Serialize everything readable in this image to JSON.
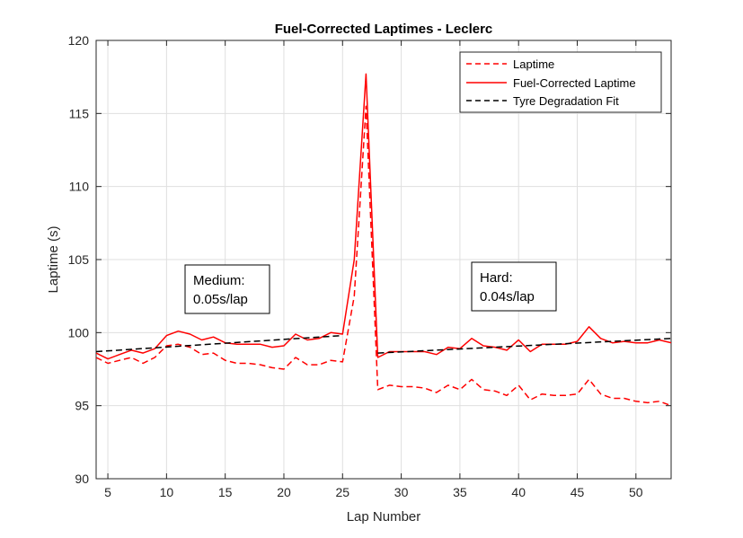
{
  "chart_data": {
    "type": "line",
    "title": "Fuel-Corrected Laptimes - Leclerc",
    "xlabel": "Lap Number",
    "ylabel": "Laptime (s)",
    "xlim": [
      4,
      53
    ],
    "ylim": [
      90,
      120
    ],
    "xticks": [
      5,
      10,
      15,
      20,
      25,
      30,
      35,
      40,
      45,
      50
    ],
    "yticks": [
      90,
      95,
      100,
      105,
      110,
      115,
      120
    ],
    "grid": true,
    "legend_position": "top-right",
    "series": [
      {
        "name": "Laptime",
        "style": "dashed",
        "color": "#ff0000",
        "x": [
          4,
          5,
          6,
          7,
          8,
          9,
          10,
          11,
          12,
          13,
          14,
          15,
          16,
          17,
          18,
          19,
          20,
          21,
          22,
          23,
          24,
          25,
          26,
          27,
          28,
          29,
          30,
          31,
          32,
          33,
          34,
          35,
          36,
          37,
          38,
          39,
          40,
          41,
          42,
          43,
          44,
          45,
          46,
          47,
          48,
          49,
          50,
          51,
          52,
          53
        ],
        "y": [
          98.3,
          97.9,
          98.1,
          98.3,
          97.9,
          98.3,
          99.1,
          99.2,
          99.0,
          98.5,
          98.6,
          98.1,
          97.9,
          97.9,
          97.8,
          97.6,
          97.5,
          98.3,
          97.8,
          97.8,
          98.1,
          98.0,
          102.5,
          115.5,
          96.1,
          96.4,
          96.3,
          96.3,
          96.2,
          95.9,
          96.4,
          96.1,
          96.8,
          96.1,
          96.0,
          95.7,
          96.4,
          95.4,
          95.8,
          95.7,
          95.7,
          95.8,
          96.8,
          95.8,
          95.5,
          95.5,
          95.3,
          95.2,
          95.3,
          95.0
        ]
      },
      {
        "name": "Fuel-Corrected Laptime",
        "style": "solid",
        "color": "#ff0000",
        "x": [
          4,
          5,
          6,
          7,
          8,
          9,
          10,
          11,
          12,
          13,
          14,
          15,
          16,
          17,
          18,
          19,
          20,
          21,
          22,
          23,
          24,
          25,
          26,
          27,
          28,
          29,
          30,
          31,
          32,
          33,
          34,
          35,
          36,
          37,
          38,
          39,
          40,
          41,
          42,
          43,
          44,
          45,
          46,
          47,
          48,
          49,
          50,
          51,
          52,
          53
        ],
        "y": [
          98.6,
          98.2,
          98.5,
          98.8,
          98.6,
          98.9,
          99.8,
          100.1,
          99.9,
          99.5,
          99.7,
          99.3,
          99.2,
          99.2,
          99.2,
          99.0,
          99.1,
          99.9,
          99.5,
          99.6,
          100.0,
          99.9,
          105.0,
          117.7,
          98.3,
          98.7,
          98.7,
          98.7,
          98.7,
          98.5,
          99.0,
          98.9,
          99.6,
          99.1,
          99.0,
          98.8,
          99.5,
          98.7,
          99.2,
          99.2,
          99.2,
          99.4,
          100.4,
          99.6,
          99.3,
          99.4,
          99.3,
          99.3,
          99.5,
          99.3
        ]
      },
      {
        "name": "Tyre Degradation Fit",
        "style": "dashed",
        "color": "#000000",
        "segments": [
          {
            "x": [
              4,
              25
            ],
            "y": [
              98.7,
              99.8
            ]
          },
          {
            "x": [
              28,
              53
            ],
            "y": [
              98.6,
              99.6
            ]
          }
        ]
      }
    ],
    "annotations": [
      {
        "lines": [
          "Medium:",
          "0.05s/lap"
        ]
      },
      {
        "lines": [
          "Hard:",
          "0.04s/lap"
        ]
      }
    ]
  }
}
